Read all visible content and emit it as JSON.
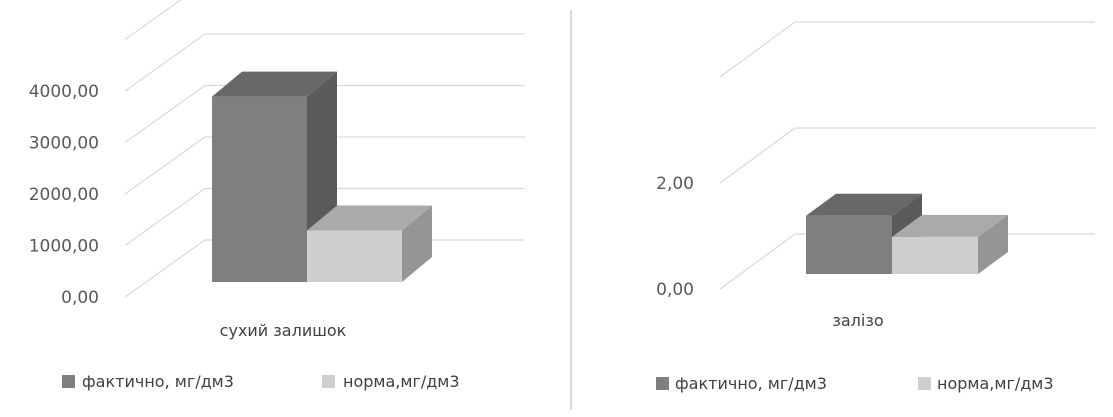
{
  "chart_data": [
    {
      "type": "bar",
      "categories": [
        "сухий залишок"
      ],
      "series": [
        {
          "name": "фактично, мг/дм3",
          "values": [
            3600
          ],
          "color": "#7f7f7f"
        },
        {
          "name": "норма,мг/дм3",
          "values": [
            1000
          ],
          "color": "#cfcfcf"
        }
      ],
      "yticks": [
        "0,00",
        "1000,00",
        "2000,00",
        "3000,00",
        "4000,00"
      ],
      "ylim": [
        0,
        4000
      ],
      "style": "3d-column",
      "legend": "bottom"
    },
    {
      "type": "bar",
      "categories": [
        "залізо"
      ],
      "series": [
        {
          "name": "фактично, мг/дм3",
          "values": [
            1.1
          ],
          "color": "#7f7f7f"
        },
        {
          "name": "норма,мг/дм3",
          "values": [
            0.7
          ],
          "color": "#cfcfcf"
        }
      ],
      "yticks": [
        "0,00",
        "2,00"
      ],
      "ylim": [
        0,
        2
      ],
      "style": "3d-column",
      "legend": "bottom"
    }
  ]
}
